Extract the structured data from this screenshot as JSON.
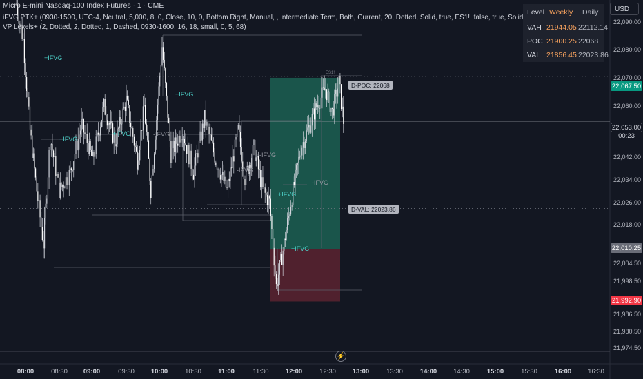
{
  "legend": {
    "symbol": "Micro E-mini Nasdaq-100 Index Futures · 1 · CME",
    "indicator1": "iFVG PTK+ (0930-1500, UTC-4, Neutral, 5,000, 8, 0, Close, 10, 0, Bottom Right, Manual, , Intermediate Term, Both, Current, 20, Dotted, Solid, true, ES1!, false, true, Solid)",
    "indicator2": "VP Levels+ (2, Dotted, 2, Dotted, 1, Dashed, 0930-1600, 16, 18, small, 0, 5, 68)"
  },
  "currency": "USD",
  "vp_table": {
    "headers": [
      "Level",
      "Weekly",
      "Daily"
    ],
    "rows": [
      {
        "level": "VAH",
        "weekly": "21944.05",
        "daily": "22112.14"
      },
      {
        "level": "POC",
        "weekly": "21900.25",
        "daily": "22068"
      },
      {
        "level": "VAL",
        "weekly": "21856.45",
        "daily": "22023.86"
      }
    ]
  },
  "colors": {
    "background": "#131722",
    "candle": "#d1d4dc",
    "profit_zone": "#1e6b5a",
    "loss_zone": "#5c2330",
    "green_tag": "#089981",
    "red_tag": "#f23645",
    "ifvg_bull": "#4dd0c8",
    "ifvg_bear": "#9598a1",
    "table_accent": "#f7a25e"
  },
  "price_tags": {
    "tp": "22,067.50",
    "current": "22,053.00",
    "countdown": "00:23",
    "entry": "22,010.25",
    "stop": "21,992.90"
  },
  "vp_labels": {
    "poc": "D-POC: 22068",
    "val": "D-VAL: 22023.86",
    "top": "ES1!"
  },
  "annotations": {
    "ifvg_bull": "+IFVG",
    "ifvg_bear": "-IFVG"
  },
  "alert_icon": "clock-alert-icon",
  "chart_data": {
    "type": "candlestick",
    "title": "Micro E-mini Nasdaq-100 Index Futures · 1 · CME",
    "y_ticks": [
      "22,090.00",
      "22,080.00",
      "22,070.00",
      "22,060.00",
      "22,042.00",
      "22,034.00",
      "22,026.00",
      "22,018.00",
      "22,004.50",
      "21,998.50",
      "21,986.50",
      "21,980.50",
      "21,974.50"
    ],
    "x_ticks": [
      {
        "label": "08:00",
        "major": true
      },
      {
        "label": "08:30",
        "major": false
      },
      {
        "label": "09:00",
        "major": true
      },
      {
        "label": "09:30",
        "major": false
      },
      {
        "label": "10:00",
        "major": true
      },
      {
        "label": "10:30",
        "major": false
      },
      {
        "label": "11:00",
        "major": true
      },
      {
        "label": "11:30",
        "major": false
      },
      {
        "label": "12:00",
        "major": true
      },
      {
        "label": "12:30",
        "major": false
      },
      {
        "label": "13:00",
        "major": true
      },
      {
        "label": "13:30",
        "major": false
      },
      {
        "label": "14:00",
        "major": true
      },
      {
        "label": "14:30",
        "major": false
      },
      {
        "label": "15:00",
        "major": true
      },
      {
        "label": "15:30",
        "major": false
      },
      {
        "label": "16:00",
        "major": true
      },
      {
        "label": "16:30",
        "major": false
      }
    ],
    "price_path_keypoints": [
      {
        "t": "07:52",
        "p": 22092
      },
      {
        "t": "07:58",
        "p": 22080
      },
      {
        "t": "08:04",
        "p": 22050
      },
      {
        "t": "08:10",
        "p": 22030
      },
      {
        "t": "08:16",
        "p": 22012
      },
      {
        "t": "08:22",
        "p": 22048
      },
      {
        "t": "08:30",
        "p": 22030
      },
      {
        "t": "08:40",
        "p": 22036
      },
      {
        "t": "08:50",
        "p": 22052
      },
      {
        "t": "09:00",
        "p": 22040
      },
      {
        "t": "09:10",
        "p": 22058
      },
      {
        "t": "09:20",
        "p": 22046
      },
      {
        "t": "09:30",
        "p": 22060
      },
      {
        "t": "09:40",
        "p": 22040
      },
      {
        "t": "09:46",
        "p": 22058
      },
      {
        "t": "09:52",
        "p": 22030
      },
      {
        "t": "10:02",
        "p": 22078
      },
      {
        "t": "10:10",
        "p": 22042
      },
      {
        "t": "10:20",
        "p": 22050
      },
      {
        "t": "10:30",
        "p": 22036
      },
      {
        "t": "10:40",
        "p": 22054
      },
      {
        "t": "10:50",
        "p": 22040
      },
      {
        "t": "11:00",
        "p": 22030
      },
      {
        "t": "11:10",
        "p": 22050
      },
      {
        "t": "11:16",
        "p": 22034
      },
      {
        "t": "11:24",
        "p": 22044
      },
      {
        "t": "11:32",
        "p": 22030
      },
      {
        "t": "11:38",
        "p": 22026
      },
      {
        "t": "11:44",
        "p": 21998
      },
      {
        "t": "11:50",
        "p": 22010
      },
      {
        "t": "11:58",
        "p": 22028
      },
      {
        "t": "12:06",
        "p": 22044
      },
      {
        "t": "12:14",
        "p": 22052
      },
      {
        "t": "12:20",
        "p": 22058
      },
      {
        "t": "12:28",
        "p": 22064
      },
      {
        "t": "12:34",
        "p": 22056
      },
      {
        "t": "12:40",
        "p": 22066
      },
      {
        "t": "12:44",
        "p": 22053
      }
    ],
    "position": {
      "entry": 22010.25,
      "take_profit": 22067.5,
      "stop": 21992.9
    },
    "levels": {
      "daily_poc": 22068,
      "daily_val": 22023.86,
      "current": 22053
    }
  }
}
